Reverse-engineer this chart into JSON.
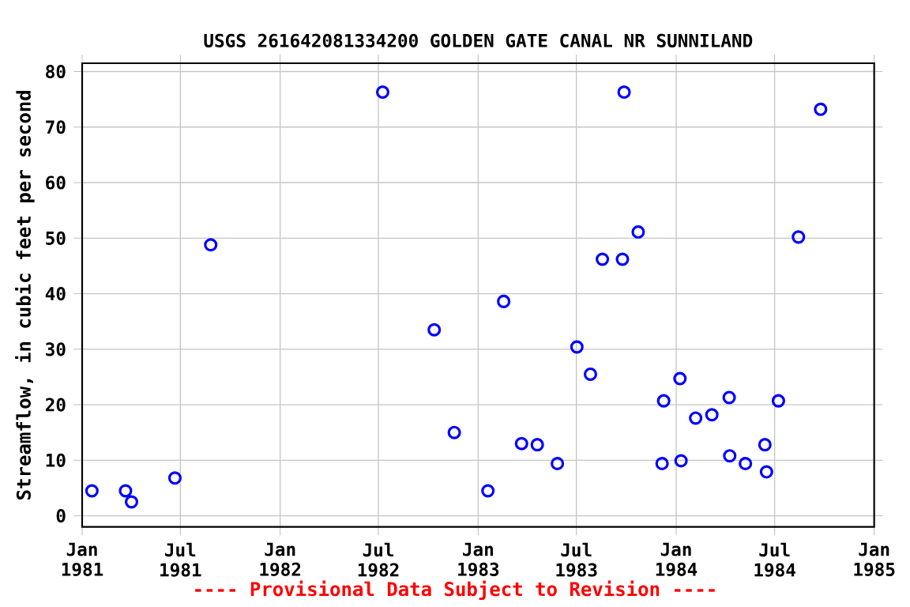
{
  "chart_data": {
    "type": "scatter",
    "title": "USGS 261642081334200 GOLDEN GATE CANAL NR SUNNILAND",
    "ylabel": "Streamflow, in cubic feet per second",
    "annotations": [
      "---- Provisional Data Subject to Revision ----"
    ],
    "x": [
      "1981-01-19",
      "1981-03-22",
      "1981-04-02",
      "1981-06-21",
      "1981-08-26",
      "1982-07-09",
      "1982-10-12",
      "1982-11-18",
      "1983-01-19",
      "1983-02-17",
      "1983-03-22",
      "1983-04-20",
      "1983-05-27",
      "1983-07-02",
      "1983-07-27",
      "1983-08-18",
      "1983-09-24",
      "1983-09-27",
      "1983-10-23",
      "1983-12-09",
      "1983-12-06",
      "1984-01-08",
      "1984-01-10",
      "1984-02-06",
      "1984-03-07",
      "1984-04-08",
      "1984-04-09",
      "1984-05-08",
      "1984-06-13",
      "1984-06-16",
      "1984-07-08",
      "1984-08-14",
      "1984-09-24"
    ],
    "series": [
      {
        "color": "#0000ff",
        "values": [
          4.5,
          4.5,
          2.5,
          6.8,
          48.8,
          76.3,
          33.5,
          15.0,
          4.5,
          38.6,
          13.0,
          12.8,
          9.4,
          30.4,
          25.5,
          46.2,
          46.2,
          76.3,
          51.1,
          20.7,
          9.4,
          24.7,
          9.9,
          17.6,
          18.2,
          21.3,
          10.8,
          9.4,
          12.8,
          7.9,
          20.7,
          50.2,
          73.2
        ]
      }
    ],
    "xlim": [
      "1981-01-01",
      "1985-01-01"
    ],
    "xticks": [
      {
        "value": "1981-01-01",
        "label": "Jan 1981"
      },
      {
        "value": "1981-07-01",
        "label": "Jul 1981"
      },
      {
        "value": "1982-01-01",
        "label": "Jan 1982"
      },
      {
        "value": "1982-07-01",
        "label": "Jul 1982"
      },
      {
        "value": "1983-01-01",
        "label": "Jan 1983"
      },
      {
        "value": "1983-07-01",
        "label": "Jul 1983"
      },
      {
        "value": "1984-01-01",
        "label": "Jan 1984"
      },
      {
        "value": "1984-07-01",
        "label": "Jul 1984"
      },
      {
        "value": "1985-01-01",
        "label": "Jan 1985"
      }
    ],
    "ylim": [
      -2,
      81.5
    ],
    "yticks": [
      0,
      10,
      20,
      30,
      40,
      50,
      60,
      70,
      80
    ],
    "grid": true,
    "marker": "circle"
  }
}
